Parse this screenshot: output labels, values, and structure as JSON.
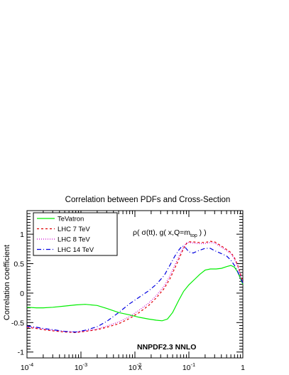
{
  "chart_data": {
    "type": "line",
    "title": "Correlation between PDFs and Cross-Section",
    "ylabel": "Correlation coefficient",
    "xscale": "log",
    "xlim": [
      0.0001,
      1
    ],
    "ylim": [
      -1.1,
      1.4
    ],
    "xticks": [
      {
        "value": 0.0001,
        "base": "10",
        "exp": "-4"
      },
      {
        "value": 0.001,
        "base": "10",
        "exp": "-3"
      },
      {
        "value": 0.01,
        "base": "10",
        "exp": "-2"
      },
      {
        "value": 0.1,
        "base": "10",
        "exp": "-1"
      },
      {
        "value": 1,
        "base": "1",
        "exp": ""
      }
    ],
    "xaxis_suffix": "X",
    "yticks": [
      {
        "value": -1,
        "label": "-1"
      },
      {
        "value": -0.5,
        "label": "-0.5"
      },
      {
        "value": 0,
        "label": "0"
      },
      {
        "value": 0.5,
        "label": "0.5"
      },
      {
        "value": 1,
        "label": "1"
      }
    ],
    "legend_position": "top-left",
    "annotation": {
      "main": "ρ( σ(tt), g( x,Q=m",
      "sub": "top",
      "end": " ) )"
    },
    "label": "NNPDF2.3 NNLO",
    "series": [
      {
        "name": "TeVatron",
        "color": "#00ee00",
        "dash": "",
        "points": [
          [
            0.0001,
            -0.24
          ],
          [
            0.00015,
            -0.25
          ],
          [
            0.0002,
            -0.25
          ],
          [
            0.0003,
            -0.24
          ],
          [
            0.0005,
            -0.22
          ],
          [
            0.0008,
            -0.2
          ],
          [
            0.0012,
            -0.19
          ],
          [
            0.002,
            -0.21
          ],
          [
            0.003,
            -0.26
          ],
          [
            0.005,
            -0.33
          ],
          [
            0.008,
            -0.37
          ],
          [
            0.012,
            -0.41
          ],
          [
            0.018,
            -0.44
          ],
          [
            0.025,
            -0.46
          ],
          [
            0.032,
            -0.47
          ],
          [
            0.04,
            -0.44
          ],
          [
            0.05,
            -0.33
          ],
          [
            0.065,
            -0.12
          ],
          [
            0.08,
            0.03
          ],
          [
            0.1,
            0.14
          ],
          [
            0.13,
            0.24
          ],
          [
            0.16,
            0.32
          ],
          [
            0.2,
            0.39
          ],
          [
            0.25,
            0.41
          ],
          [
            0.32,
            0.41
          ],
          [
            0.4,
            0.42
          ],
          [
            0.5,
            0.45
          ],
          [
            0.6,
            0.47
          ],
          [
            0.7,
            0.44
          ],
          [
            0.8,
            0.36
          ],
          [
            0.9,
            0.25
          ],
          [
            1.0,
            0.15
          ]
        ]
      },
      {
        "name": "LHC 7 TeV",
        "color": "#e00000",
        "dash": "3,3",
        "points": [
          [
            0.0001,
            -0.58
          ],
          [
            0.00015,
            -0.6
          ],
          [
            0.0002,
            -0.62
          ],
          [
            0.0003,
            -0.64
          ],
          [
            0.0005,
            -0.66
          ],
          [
            0.0008,
            -0.67
          ],
          [
            0.0012,
            -0.65
          ],
          [
            0.002,
            -0.62
          ],
          [
            0.003,
            -0.58
          ],
          [
            0.005,
            -0.52
          ],
          [
            0.008,
            -0.43
          ],
          [
            0.012,
            -0.33
          ],
          [
            0.018,
            -0.21
          ],
          [
            0.025,
            -0.08
          ],
          [
            0.035,
            0.08
          ],
          [
            0.045,
            0.25
          ],
          [
            0.06,
            0.5
          ],
          [
            0.07,
            0.64
          ],
          [
            0.08,
            0.76
          ],
          [
            0.09,
            0.84
          ],
          [
            0.1,
            0.87
          ],
          [
            0.12,
            0.87
          ],
          [
            0.15,
            0.86
          ],
          [
            0.2,
            0.86
          ],
          [
            0.25,
            0.88
          ],
          [
            0.3,
            0.87
          ],
          [
            0.4,
            0.8
          ],
          [
            0.5,
            0.74
          ],
          [
            0.6,
            0.69
          ],
          [
            0.7,
            0.6
          ],
          [
            0.8,
            0.48
          ],
          [
            0.9,
            0.33
          ],
          [
            1.0,
            0.18
          ]
        ]
      },
      {
        "name": "LHC 8 TeV",
        "color": "#d000d0",
        "dash": "1,2",
        "points": [
          [
            0.0001,
            -0.57
          ],
          [
            0.00015,
            -0.59
          ],
          [
            0.0002,
            -0.61
          ],
          [
            0.0003,
            -0.63
          ],
          [
            0.0005,
            -0.65
          ],
          [
            0.0008,
            -0.66
          ],
          [
            0.0012,
            -0.64
          ],
          [
            0.002,
            -0.61
          ],
          [
            0.003,
            -0.56
          ],
          [
            0.005,
            -0.49
          ],
          [
            0.008,
            -0.4
          ],
          [
            0.012,
            -0.29
          ],
          [
            0.018,
            -0.17
          ],
          [
            0.025,
            -0.04
          ],
          [
            0.035,
            0.12
          ],
          [
            0.045,
            0.3
          ],
          [
            0.06,
            0.55
          ],
          [
            0.07,
            0.68
          ],
          [
            0.08,
            0.78
          ],
          [
            0.09,
            0.85
          ],
          [
            0.1,
            0.86
          ],
          [
            0.12,
            0.85
          ],
          [
            0.15,
            0.84
          ],
          [
            0.2,
            0.84
          ],
          [
            0.25,
            0.86
          ],
          [
            0.3,
            0.85
          ],
          [
            0.4,
            0.78
          ],
          [
            0.5,
            0.72
          ],
          [
            0.6,
            0.67
          ],
          [
            0.7,
            0.58
          ],
          [
            0.8,
            0.46
          ],
          [
            0.9,
            0.31
          ],
          [
            1.0,
            0.17
          ]
        ]
      },
      {
        "name": "LHC 14 TeV",
        "color": "#0000e0",
        "dash": "6,3,1,3",
        "points": [
          [
            0.0001,
            -0.56
          ],
          [
            0.00015,
            -0.58
          ],
          [
            0.0002,
            -0.6
          ],
          [
            0.0003,
            -0.62
          ],
          [
            0.0005,
            -0.65
          ],
          [
            0.0008,
            -0.66
          ],
          [
            0.0012,
            -0.63
          ],
          [
            0.002,
            -0.57
          ],
          [
            0.003,
            -0.48
          ],
          [
            0.005,
            -0.33
          ],
          [
            0.008,
            -0.18
          ],
          [
            0.012,
            -0.07
          ],
          [
            0.018,
            0.04
          ],
          [
            0.025,
            0.15
          ],
          [
            0.035,
            0.3
          ],
          [
            0.045,
            0.48
          ],
          [
            0.055,
            0.63
          ],
          [
            0.065,
            0.73
          ],
          [
            0.075,
            0.8
          ],
          [
            0.085,
            0.78
          ],
          [
            0.1,
            0.7
          ],
          [
            0.12,
            0.68
          ],
          [
            0.15,
            0.72
          ],
          [
            0.2,
            0.76
          ],
          [
            0.25,
            0.76
          ],
          [
            0.3,
            0.72
          ],
          [
            0.4,
            0.67
          ],
          [
            0.5,
            0.63
          ],
          [
            0.6,
            0.56
          ],
          [
            0.7,
            0.47
          ],
          [
            0.8,
            0.37
          ],
          [
            0.9,
            0.26
          ],
          [
            1.0,
            0.17
          ]
        ]
      }
    ]
  }
}
